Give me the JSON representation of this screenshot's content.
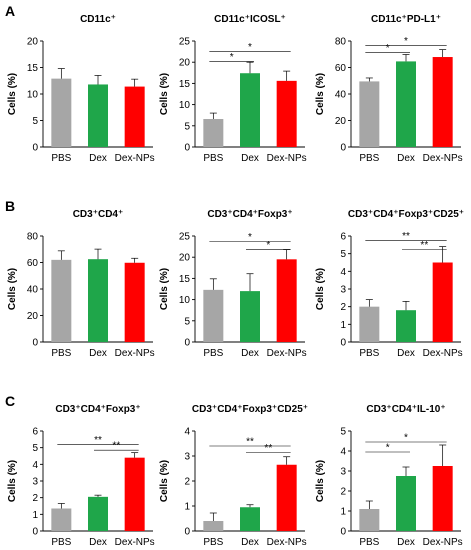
{
  "panel_labels": [
    "A",
    "B",
    "C"
  ],
  "colors": {
    "PBS": "#a6a6a6",
    "Dex": "#1fa64a",
    "Dex-NPs": "#ff0000",
    "axis": "#000000",
    "error": "#000000"
  },
  "chart_data": [
    {
      "type": "bar",
      "title": "CD11c⁺",
      "ylabel": "Cells (%)",
      "categories": [
        "PBS",
        "Dex",
        "Dex-NPs"
      ],
      "ylim": [
        0,
        20
      ],
      "yticks": [
        0,
        5,
        10,
        15,
        20
      ],
      "values": [
        12.9,
        11.8,
        11.4
      ],
      "errors": [
        1.9,
        1.7,
        1.4
      ],
      "significance": []
    },
    {
      "type": "bar",
      "title": "CD11c⁺ICOSL⁺",
      "ylabel": "Cells (%)",
      "categories": [
        "PBS",
        "Dex",
        "Dex-NPs"
      ],
      "ylim": [
        0,
        25
      ],
      "yticks": [
        0,
        5,
        10,
        15,
        20,
        25
      ],
      "values": [
        6.6,
        17.4,
        15.6
      ],
      "errors": [
        1.4,
        2.6,
        2.3
      ],
      "significance": [
        {
          "from": 0,
          "to": 2,
          "label": "*",
          "y": 22.5
        },
        {
          "from": 0,
          "to": 1,
          "label": "*",
          "y": 20.2
        }
      ]
    },
    {
      "type": "bar",
      "title": "CD11c⁺PD-L1⁺",
      "ylabel": "Cells (%)",
      "categories": [
        "PBS",
        "Dex",
        "Dex-NPs"
      ],
      "ylim": [
        0,
        80
      ],
      "yticks": [
        0,
        20,
        40,
        60,
        80
      ],
      "values": [
        49.5,
        64.6,
        67.9
      ],
      "errors": [
        2.6,
        5.2,
        5.6
      ],
      "significance": [
        {
          "from": 0,
          "to": 2,
          "label": "*",
          "y": 76.5
        },
        {
          "from": 0,
          "to": 1,
          "label": "*",
          "y": 71.5
        }
      ]
    },
    {
      "type": "bar",
      "title": "CD3⁺CD4⁺",
      "ylabel": "Cells (%)",
      "categories": [
        "PBS",
        "Dex",
        "Dex-NPs"
      ],
      "ylim": [
        0,
        80
      ],
      "yticks": [
        0,
        20,
        40,
        60,
        80
      ],
      "values": [
        62.0,
        62.5,
        59.8
      ],
      "errors": [
        6.8,
        7.6,
        3.4
      ],
      "significance": []
    },
    {
      "type": "bar",
      "title": "CD3⁺CD4⁺Foxp3⁺",
      "ylabel": "Cells (%)",
      "categories": [
        "PBS",
        "Dex",
        "Dex-NPs"
      ],
      "ylim": [
        0,
        25
      ],
      "yticks": [
        0,
        5,
        10,
        15,
        20,
        25
      ],
      "values": [
        12.3,
        12.0,
        19.5
      ],
      "errors": [
        2.6,
        4.1,
        2.3
      ],
      "significance": [
        {
          "from": 0,
          "to": 2,
          "label": "*",
          "y": 23.7
        },
        {
          "from": 1,
          "to": 2,
          "label": "*",
          "y": 21.8
        }
      ]
    },
    {
      "type": "bar",
      "title": "CD3⁺CD4⁺Foxp3⁺CD25⁺",
      "ylabel": "Cells (%)",
      "categories": [
        "PBS",
        "Dex",
        "Dex-NPs"
      ],
      "ylim": [
        0,
        6
      ],
      "yticks": [
        0,
        1,
        2,
        3,
        4,
        5,
        6
      ],
      "values": [
        2.0,
        1.8,
        4.5
      ],
      "errors": [
        0.4,
        0.5,
        0.9
      ],
      "significance": [
        {
          "from": 0,
          "to": 2,
          "label": "**",
          "y": 5.75
        },
        {
          "from": 1,
          "to": 2,
          "label": "**",
          "y": 5.25
        }
      ]
    },
    {
      "type": "bar",
      "title": "CD3⁺CD4⁺Foxp3⁺",
      "ylabel": "Cells (%)",
      "categories": [
        "PBS",
        "Dex",
        "Dex-NPs"
      ],
      "ylim": [
        0,
        6
      ],
      "yticks": [
        0,
        1,
        2,
        3,
        4,
        5,
        6
      ],
      "values": [
        1.35,
        2.05,
        4.4
      ],
      "errors": [
        0.3,
        0.1,
        0.3
      ],
      "significance": [
        {
          "from": 0,
          "to": 2,
          "label": "**",
          "y": 5.2
        },
        {
          "from": 1,
          "to": 2,
          "label": "**",
          "y": 4.85
        }
      ]
    },
    {
      "type": "bar",
      "title": "CD3⁺CD4⁺Foxp3⁺CD25⁺",
      "ylabel": "Cells (%)",
      "categories": [
        "PBS",
        "Dex",
        "Dex-NPs"
      ],
      "ylim": [
        0,
        4
      ],
      "yticks": [
        0,
        1,
        2,
        3,
        4
      ],
      "values": [
        0.4,
        0.95,
        2.65
      ],
      "errors": [
        0.32,
        0.1,
        0.32
      ],
      "significance": [
        {
          "from": 0,
          "to": 2,
          "label": "**",
          "y": 3.4
        },
        {
          "from": 1,
          "to": 2,
          "label": "**",
          "y": 3.15
        }
      ]
    },
    {
      "type": "bar",
      "title": "CD3⁺CD4⁺IL-10⁺",
      "ylabel": "Cells (%)",
      "categories": [
        "PBS",
        "Dex",
        "Dex-NPs"
      ],
      "ylim": [
        0,
        5
      ],
      "yticks": [
        0,
        1,
        2,
        3,
        4,
        5
      ],
      "values": [
        1.1,
        2.75,
        3.25
      ],
      "errors": [
        0.4,
        0.45,
        1.05
      ],
      "significance": [
        {
          "from": 0,
          "to": 2,
          "label": "*",
          "y": 4.45
        },
        {
          "from": 0,
          "to": 1,
          "label": "*",
          "y": 3.95
        }
      ]
    }
  ]
}
